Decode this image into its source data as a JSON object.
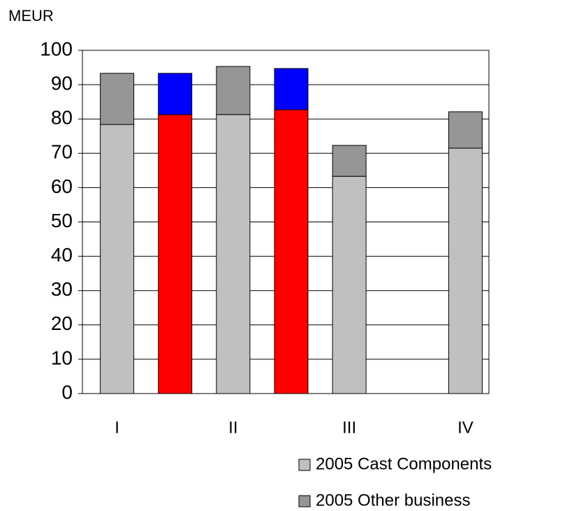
{
  "chart_data": {
    "type": "stacked_bar",
    "y_label": "MEUR",
    "categories": [
      "I",
      null,
      "II",
      null,
      "III",
      null,
      "IV"
    ],
    "series": [
      {
        "name": "2005 Cast Components",
        "color": "#c0c0c0",
        "values": [
          78.4,
          null,
          81.3,
          null,
          63.3,
          null,
          71.5
        ]
      },
      {
        "name": "2005 Other business",
        "color": "#969696",
        "values": [
          14.9,
          null,
          14.0,
          null,
          9.0,
          null,
          10.6
        ]
      },
      {
        "color": "#ff0000",
        "values": [
          null,
          81.3,
          null,
          82.7,
          null,
          null,
          null
        ]
      },
      {
        "color": "#0000ff",
        "values": [
          null,
          12.0,
          null,
          12.0,
          null,
          null,
          null
        ]
      }
    ],
    "ylim": [
      0,
      100
    ],
    "yticks": [
      0,
      10,
      20,
      30,
      40,
      50,
      60,
      70,
      80,
      90,
      100
    ],
    "grid": true
  }
}
